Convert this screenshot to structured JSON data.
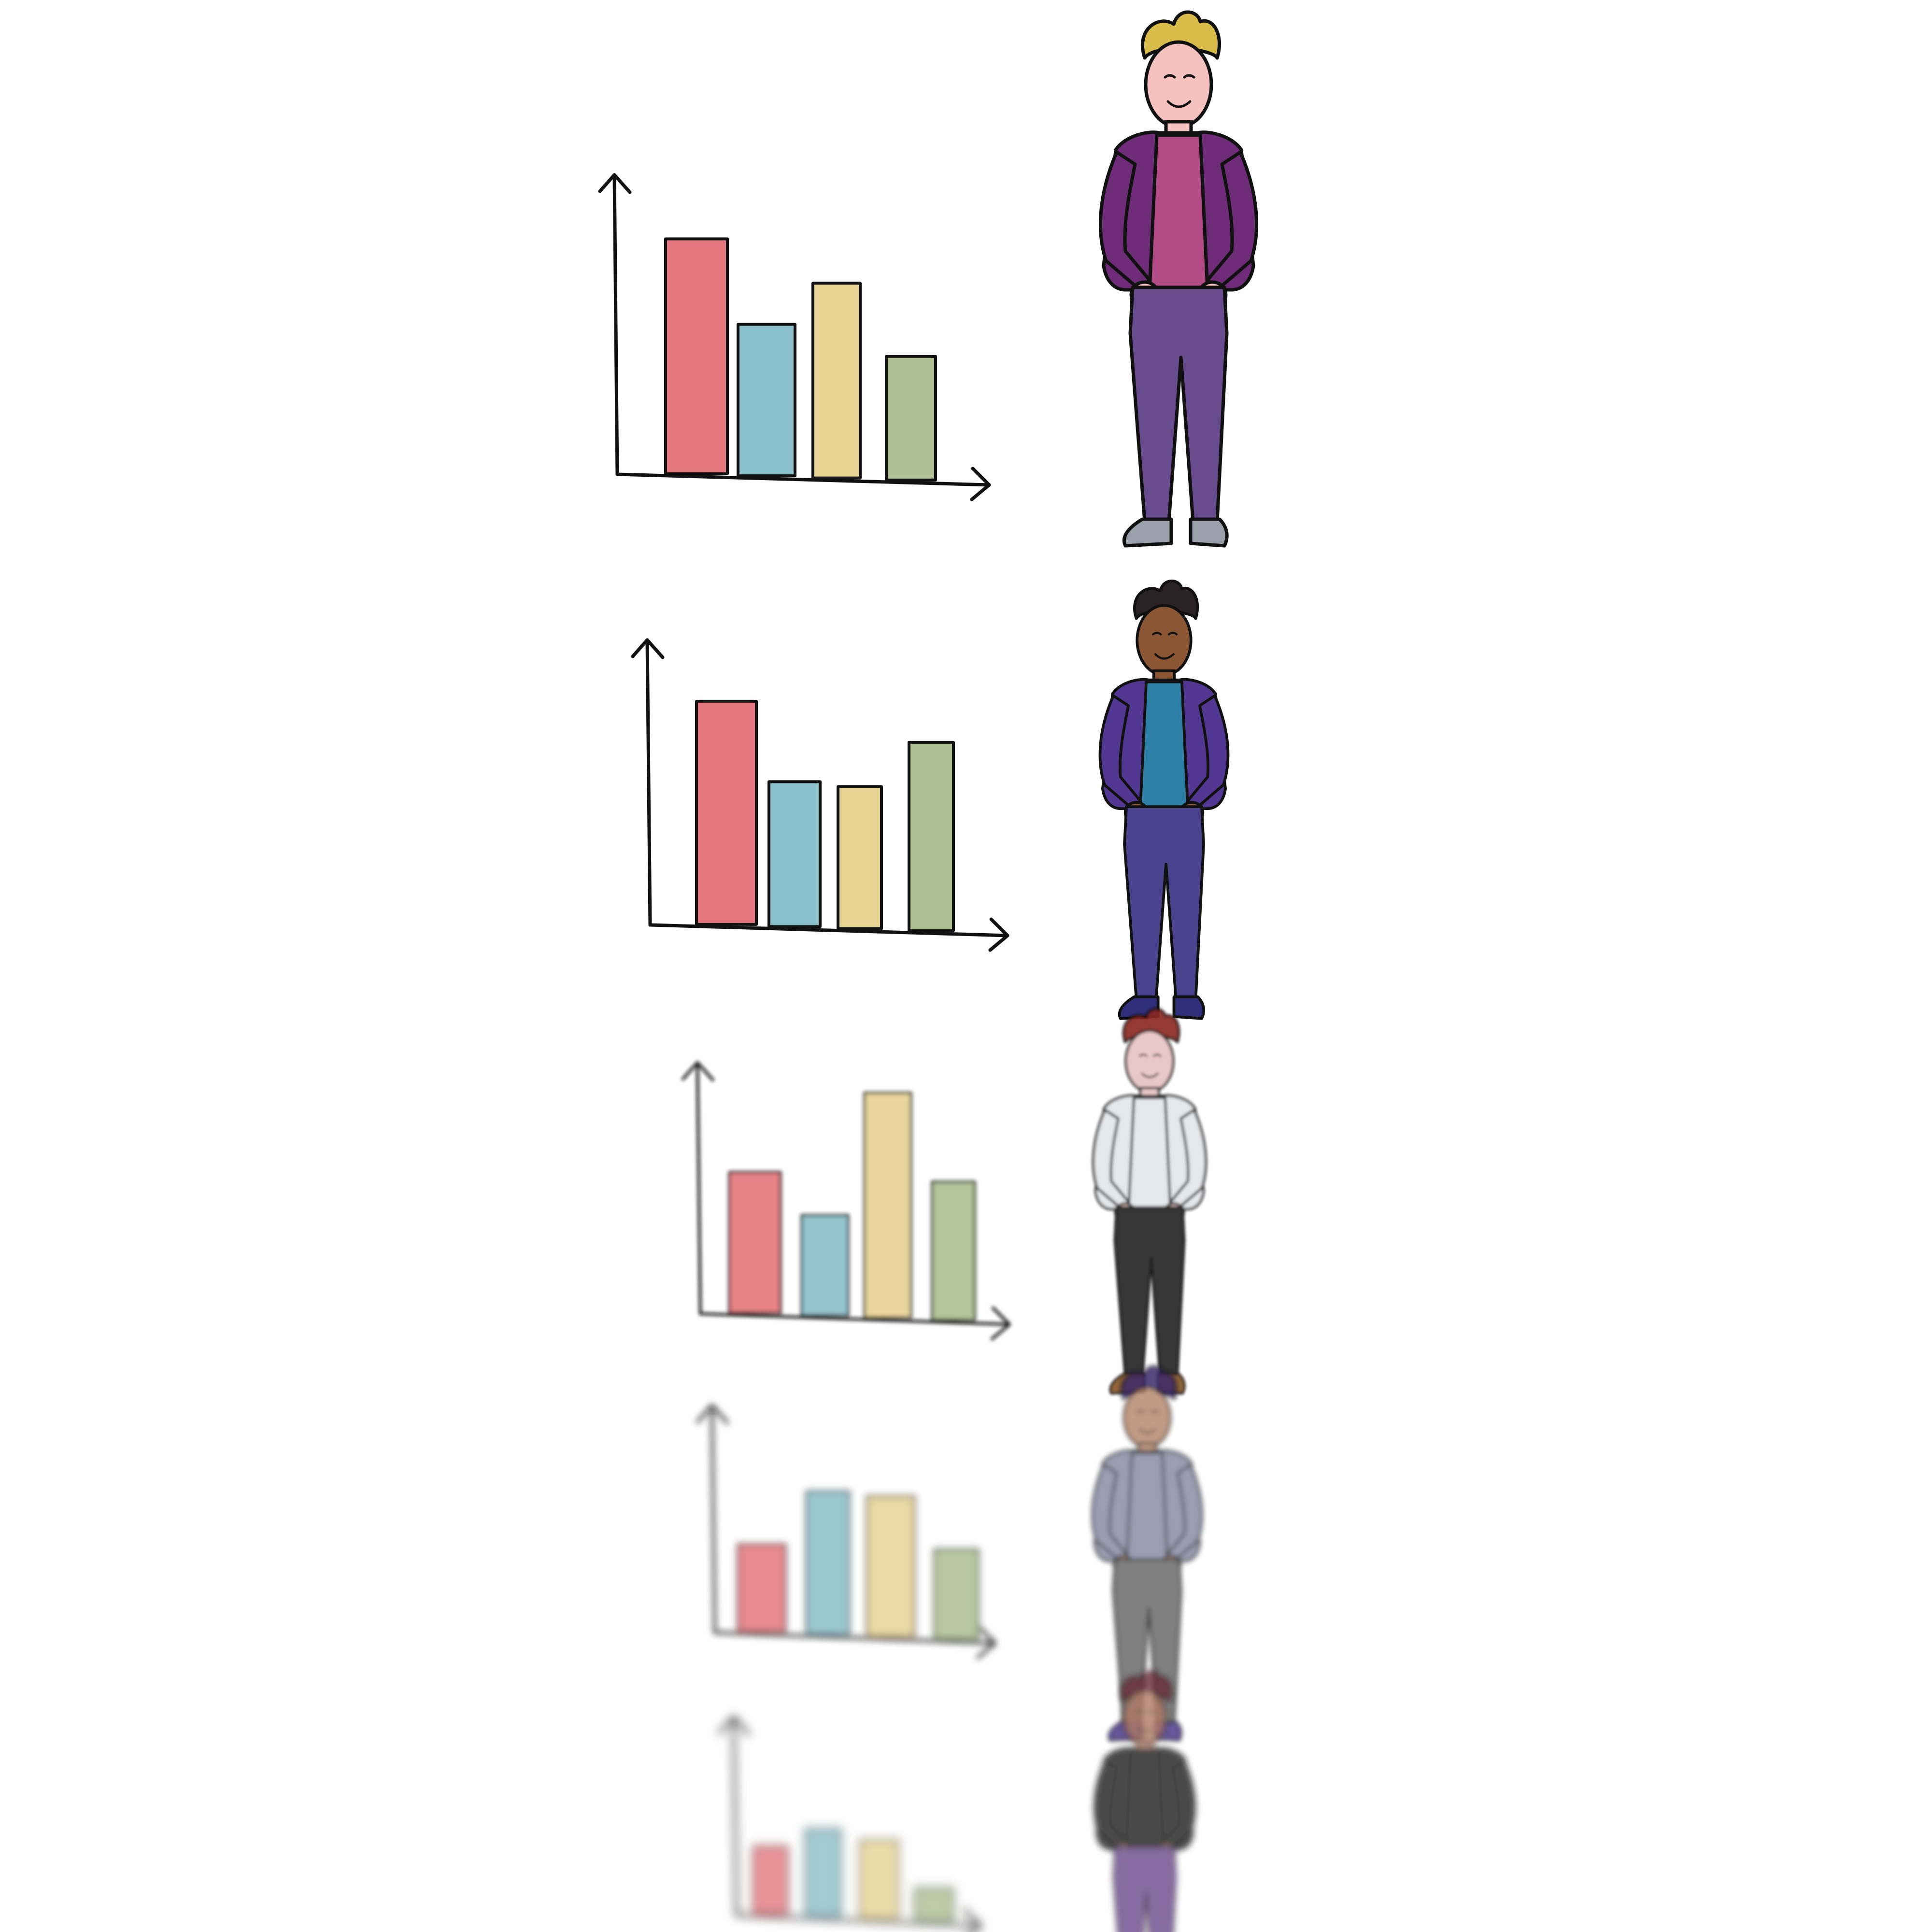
{
  "colors": {
    "bar_red": "#e4777d",
    "bar_blue": "#8bbfc9",
    "bar_yellow": "#e7d394",
    "bar_green": "#adbf92",
    "outline": "#111111"
  },
  "rows": [
    {
      "chart_data": {
        "type": "bar",
        "categories": [
          "",
          "",
          "",
          ""
        ],
        "values": [
          76,
          49,
          63,
          40
        ],
        "ylim": [
          0,
          100
        ],
        "grid": false
      },
      "person": {
        "hair": "#d8bd4a",
        "skin": "#f5c2bf",
        "top": "#b14a85",
        "jacket": "#6f2c78",
        "pants": "#684c8d",
        "shoes": "#9aa0aa"
      }
    },
    {
      "chart_data": {
        "type": "bar",
        "categories": [
          "",
          "",
          "",
          ""
        ],
        "values": [
          77,
          50,
          49,
          65
        ],
        "ylim": [
          0,
          100
        ],
        "grid": false
      },
      "person": {
        "hair": "#2a2224",
        "skin": "#8a5634",
        "top": "#2e80a7",
        "jacket": "#523892",
        "pants": "#4b438e",
        "shoes": "#2f2f7c"
      }
    },
    {
      "chart_data": {
        "type": "bar",
        "categories": [
          "",
          "",
          "",
          ""
        ],
        "values": [
          52,
          37,
          83,
          51
        ],
        "ylim": [
          0,
          100
        ],
        "grid": false
      },
      "person": {
        "hair": "#8a2a24",
        "skin": "#e8c4c4",
        "top": "#e3e5e8",
        "jacket": "#e3e5e8",
        "pants": "#252525",
        "shoes": "#8a5a2c"
      }
    },
    {
      "chart_data": {
        "type": "bar",
        "categories": [
          "",
          "",
          "",
          ""
        ],
        "values": [
          36,
          59,
          58,
          37
        ],
        "ylim": [
          0,
          100
        ],
        "grid": false
      },
      "person": {
        "hair": "#3a2c6b",
        "skin": "#b88a70",
        "top": "#8a8ea6",
        "jacket": "#8a8ea6",
        "pants": "#6a6a6a",
        "shoes": "#4b3b8a"
      }
    },
    {
      "chart_data": {
        "type": "bar",
        "categories": [
          "",
          "",
          "",
          ""
        ],
        "values": [
          31,
          40,
          36,
          15
        ],
        "ylim": [
          0,
          100
        ],
        "grid": false
      },
      "person": {
        "hair": "#6a2a3a",
        "skin": "#b07a66",
        "top": "#1e1e1e",
        "jacket": "#1e1e1e",
        "pants": "#6a4a8a",
        "shoes": "#5a4a9a"
      }
    }
  ]
}
